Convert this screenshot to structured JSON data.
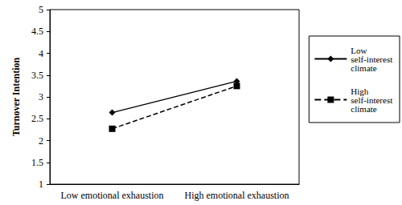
{
  "chart_data": {
    "type": "line",
    "y_label": "Turnover Intention",
    "categories": [
      "Low emotional exhaustion",
      "High emotional exhaustion"
    ],
    "series": [
      {
        "name": "Low self-interest climate",
        "color": "#000000",
        "marker": "diamond",
        "line_style": "solid",
        "values": [
          2.64,
          3.36
        ]
      },
      {
        "name": "High self-interest climate",
        "color": "#000000",
        "marker": "square",
        "line_style": "dashed",
        "values": [
          2.27,
          3.25
        ]
      }
    ],
    "ylim": [
      1,
      5
    ],
    "yticks": [
      1,
      1.5,
      2,
      2.5,
      3,
      3.5,
      4,
      4.5,
      5
    ],
    "grid": false,
    "legend": "right"
  }
}
